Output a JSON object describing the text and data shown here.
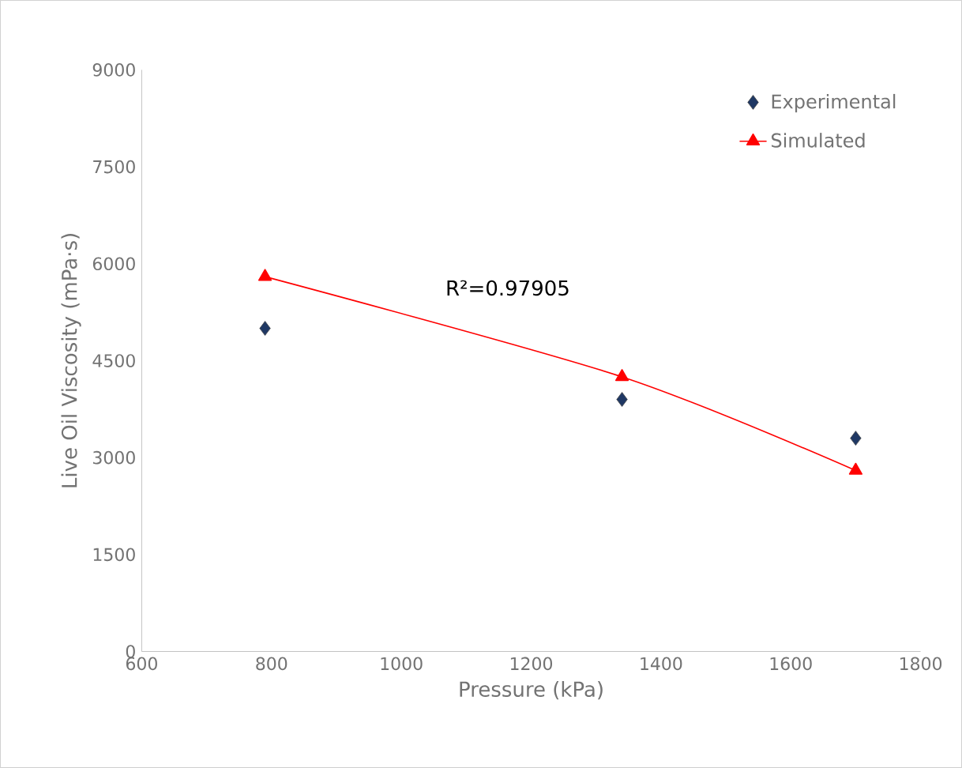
{
  "chart_data": {
    "type": "scatter",
    "xlabel": "Pressure (kPa)",
    "ylabel": "Live Oil Viscosity (mPa·s)",
    "xlim": [
      600,
      1800
    ],
    "xticks": [
      600,
      800,
      1000,
      1200,
      1400,
      1600,
      1800
    ],
    "ylim": [
      0,
      9000
    ],
    "yticks": [
      0,
      1500,
      3000,
      4500,
      6000,
      7500,
      9000
    ],
    "grid": false,
    "legend": "top right",
    "series": [
      {
        "name": "Experimental",
        "marker": "diamond",
        "color": "#1f3864",
        "x": [
          790,
          1340,
          1700
        ],
        "values": [
          5000,
          3900,
          3300
        ]
      },
      {
        "name": "Simulated",
        "type": "line",
        "marker": "triangle",
        "color": "#ff0000",
        "x": [
          790,
          1340,
          1700
        ],
        "values": [
          5800,
          4250,
          2800
        ]
      }
    ],
    "annotations": [
      "R²=0.97905"
    ]
  }
}
